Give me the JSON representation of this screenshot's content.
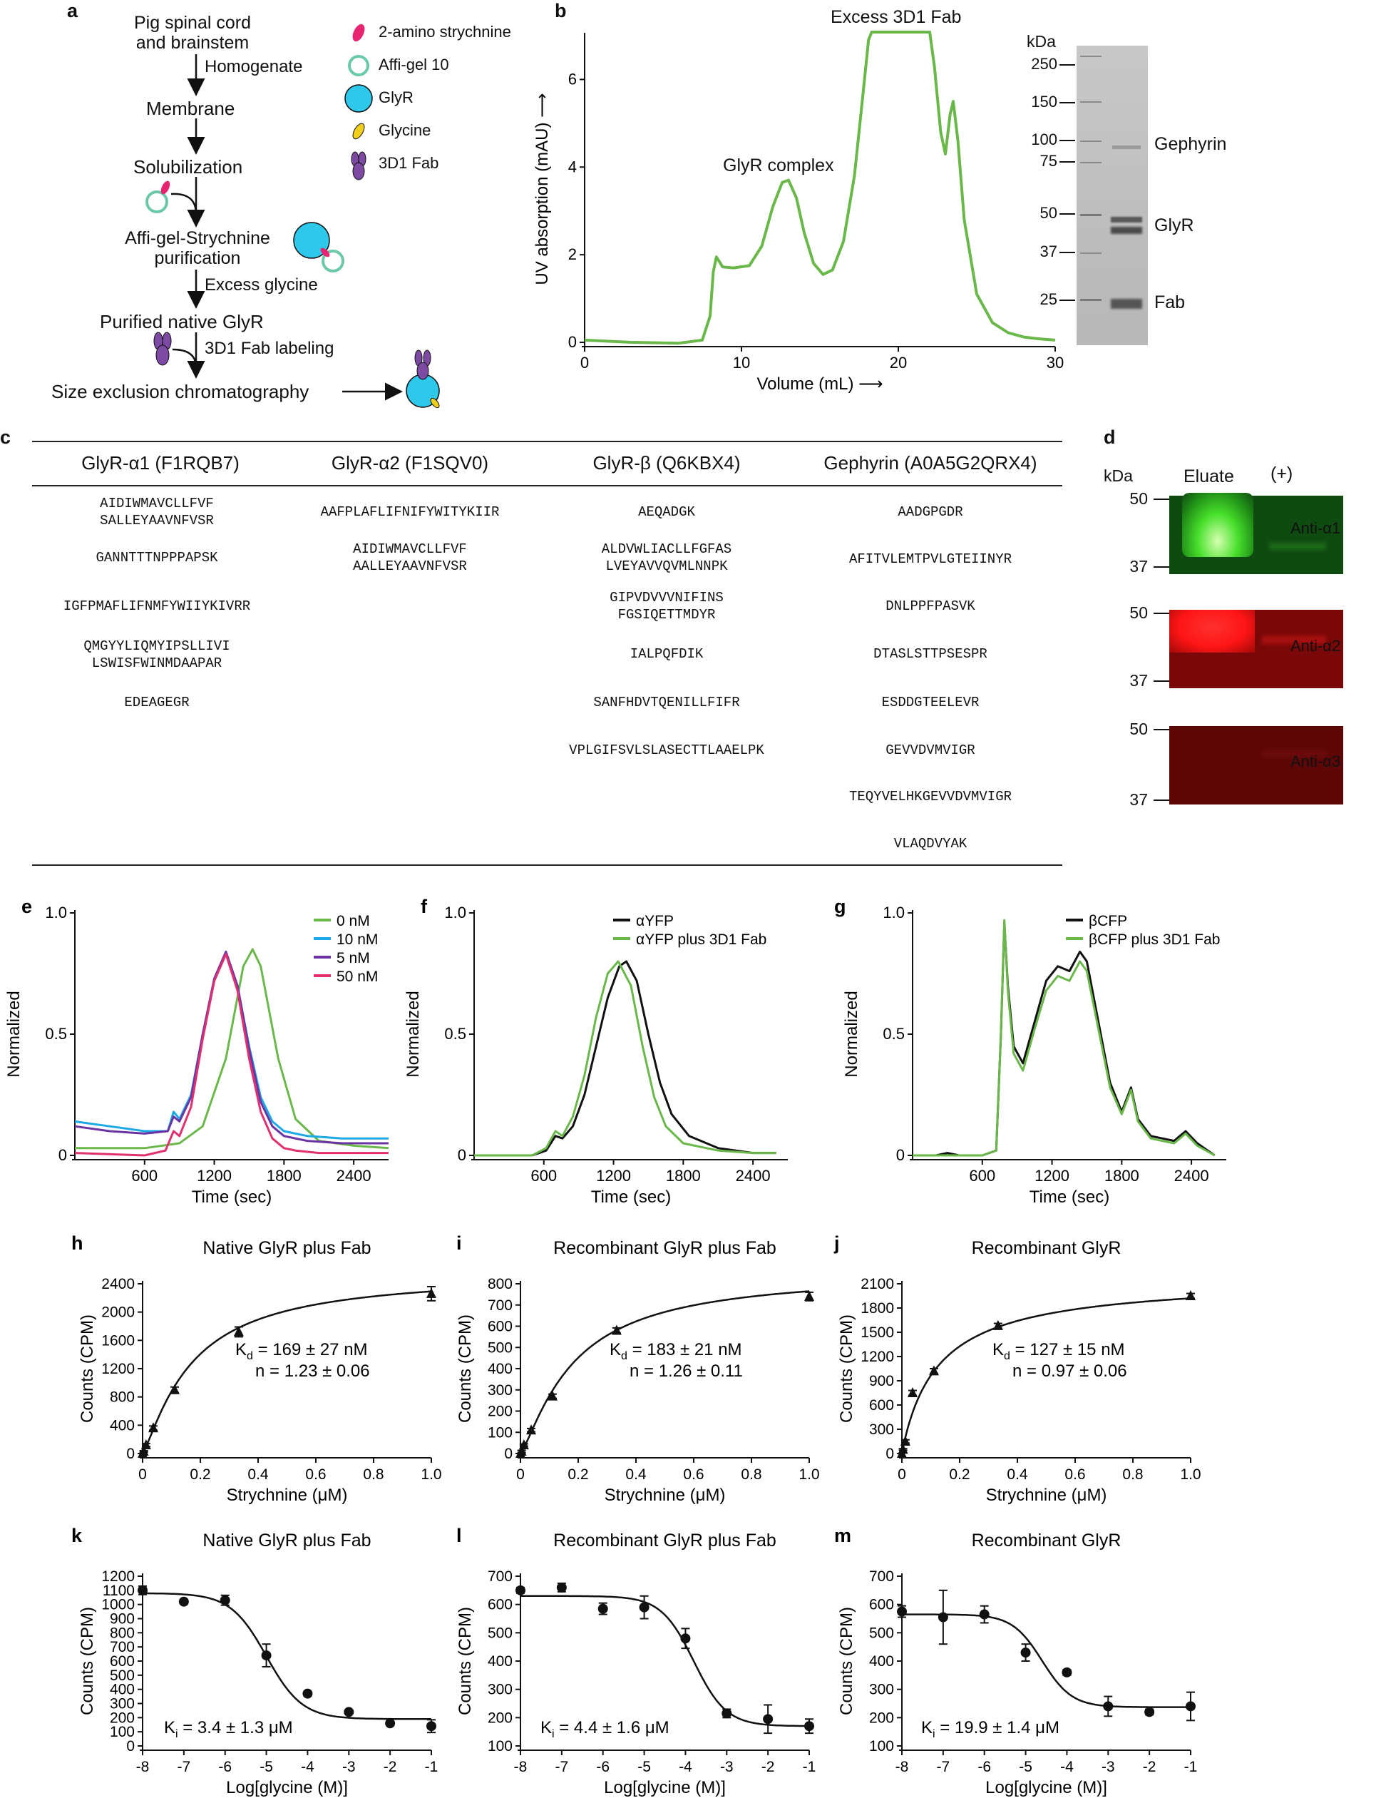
{
  "panel_a": {
    "label": "a",
    "steps": [
      "Pig spinal cord\nand brainstem",
      "Homogenate",
      "Membrane",
      "Solubilization",
      "Affi-gel-Strychnine\npurification",
      "Excess glycine",
      "Purified native GlyR",
      "3D1 Fab labeling",
      "Size exclusion chromatography"
    ],
    "legend": [
      "2-amino strychnine",
      "Affi-gel 10",
      "GlyR",
      "Glycine",
      "3D1 Fab"
    ],
    "colors": {
      "strychnine": "#e8236f",
      "affigel": "#6cc9a8",
      "glyr": "#2ec8ea",
      "glycine": "#f2cf1d",
      "fab": "#7d4aa3"
    }
  },
  "panel_b": {
    "label": "b",
    "kda_label": "kDa",
    "markers": [
      "250",
      "150",
      "100",
      "75",
      "50",
      "37",
      "25"
    ],
    "band_labels": [
      "Gephyrin",
      "GlyR",
      "Fab"
    ],
    "annotations": [
      "Excess 3D1 Fab",
      "GlyR complex"
    ]
  },
  "panel_c": {
    "label": "c",
    "columns": [
      {
        "header": "GlyR-α1 (F1RQB7)",
        "peptides": [
          "AIDIWMAVCLLFVF\nSALLEYAAVNFVSR",
          "GANNTTTNPPPAPSK",
          "IGFPMAFLIFNMFYWIIYKIVRR",
          "QMGYYLIQMYIPSLLIVI\nLSWISFWINMDAAPAR",
          "EDEAGEGR"
        ]
      },
      {
        "header": "GlyR-α2 (F1SQV0)",
        "peptides": [
          "AAFPLAFLIFNIFYWITYKIIR",
          "AIDIWMAVCLLFVF\nAALLEYAAVNFVSR"
        ]
      },
      {
        "header": "GlyR-β (Q6KBX4)",
        "peptides": [
          "AEQADGK",
          "ALDVWLIACLLFGFAS\nLVEYAVVQVMLNNPK",
          "GIPVDVVVNIFINS\nFGSIQETTMDYR",
          "IALPQFDIK",
          "SANFHDVTQENILLFIFR",
          "VPLGIFSVLSLASECTTLAAELPK"
        ]
      },
      {
        "header": "Gephyrin (A0A5G2QRX4)",
        "peptides": [
          "AADGPGDR",
          "AFITVLEMTPVLGTEIINYR",
          "DNLPPFPASVK",
          "DTASLSTTPSESPR",
          "ESDDGTEELEVR",
          "GEVVDVMVIGR",
          "TEQYVELHKGEVVDVMVIGR",
          "VLAQDVYAK"
        ]
      }
    ]
  },
  "panel_d": {
    "label": "d",
    "kda_label": "kDa",
    "lane_labels": [
      "Eluate",
      "(+)"
    ],
    "markers": [
      "50",
      "37"
    ],
    "antibodies": [
      "Anti-α1",
      "Anti-α2",
      "Anti-α3"
    ]
  },
  "chart_data": [
    {
      "id": "b",
      "type": "line",
      "label": "b",
      "title": "",
      "xlabel": "Volume (mL) ⟶",
      "ylabel": "UV absorption (mAU) ⟶",
      "xlim": [
        0,
        30
      ],
      "ylim": [
        0,
        7
      ],
      "xticks": [
        "0",
        "10",
        "20",
        "30"
      ],
      "yticks": [
        "0",
        "2",
        "4",
        "6"
      ],
      "series": [
        {
          "name": "UV",
          "color": "#6ab74a",
          "x": [
            0,
            3,
            6,
            7.5,
            8,
            8.2,
            8.4,
            8.8,
            9.5,
            10.5,
            11.3,
            12,
            12.6,
            13,
            13.5,
            14,
            14.6,
            15.2,
            15.8,
            16.5,
            17.2,
            17.7,
            18.1,
            18.3,
            22.0,
            22.3,
            22.7,
            23.0,
            23.3,
            23.5,
            23.8,
            24.2,
            25,
            26,
            27,
            28,
            29,
            30
          ],
          "y": [
            0.05,
            0.0,
            -0.02,
            0.05,
            0.6,
            1.6,
            1.95,
            1.72,
            1.7,
            1.75,
            2.2,
            3.1,
            3.65,
            3.7,
            3.3,
            2.5,
            1.8,
            1.55,
            1.65,
            2.3,
            3.8,
            5.5,
            6.9,
            7.2,
            7.2,
            6.3,
            4.8,
            4.3,
            5.2,
            5.5,
            4.6,
            2.8,
            1.1,
            0.45,
            0.22,
            0.12,
            0.08,
            0.05
          ]
        }
      ]
    },
    {
      "id": "e",
      "type": "line",
      "label": "e",
      "xlabel": "Time (sec)",
      "ylabel": "Normalized",
      "xlim": [
        0,
        2700
      ],
      "ylim": [
        0,
        1.0
      ],
      "xticks": [
        "600",
        "1200",
        "1800",
        "2400"
      ],
      "yticks": [
        "0",
        "0.5",
        "1.0"
      ],
      "series": [
        {
          "name": "0 nM",
          "color": "#6ab74a",
          "x": [
            0,
            600,
            900,
            1100,
            1300,
            1450,
            1530,
            1600,
            1750,
            1900,
            2100,
            2400,
            2700
          ],
          "y": [
            0.03,
            0.03,
            0.05,
            0.12,
            0.4,
            0.78,
            0.85,
            0.78,
            0.4,
            0.15,
            0.06,
            0.04,
            0.03
          ]
        },
        {
          "name": "10 nM",
          "color": "#1ca9e6",
          "x": [
            0,
            300,
            600,
            800,
            850,
            900,
            1000,
            1100,
            1200,
            1300,
            1400,
            1500,
            1600,
            1700,
            1800,
            2000,
            2300,
            2700
          ],
          "y": [
            0.14,
            0.12,
            0.1,
            0.1,
            0.18,
            0.15,
            0.25,
            0.5,
            0.72,
            0.83,
            0.7,
            0.45,
            0.24,
            0.14,
            0.1,
            0.08,
            0.07,
            0.07
          ]
        },
        {
          "name": "5 nM",
          "color": "#6a35a3",
          "x": [
            0,
            300,
            600,
            800,
            850,
            900,
            1000,
            1100,
            1200,
            1300,
            1400,
            1500,
            1600,
            1700,
            1800,
            2000,
            2300,
            2700
          ],
          "y": [
            0.12,
            0.1,
            0.09,
            0.1,
            0.16,
            0.14,
            0.24,
            0.5,
            0.73,
            0.84,
            0.7,
            0.44,
            0.22,
            0.12,
            0.08,
            0.06,
            0.05,
            0.05
          ]
        },
        {
          "name": "50 nM",
          "color": "#e0306f",
          "x": [
            0,
            600,
            780,
            850,
            900,
            1000,
            1100,
            1200,
            1300,
            1400,
            1500,
            1600,
            1700,
            1800,
            1900,
            2100,
            2400,
            2700
          ],
          "y": [
            0.01,
            0.0,
            0.02,
            0.1,
            0.08,
            0.2,
            0.48,
            0.72,
            0.83,
            0.68,
            0.4,
            0.18,
            0.07,
            0.03,
            0.02,
            0.01,
            0.01,
            0.01
          ]
        }
      ]
    },
    {
      "id": "f",
      "type": "line",
      "label": "f",
      "xlabel": "Time (sec)",
      "ylabel": "Normalized",
      "xlim": [
        0,
        2700
      ],
      "ylim": [
        0,
        1.0
      ],
      "xticks": [
        "600",
        "1200",
        "1800",
        "2400"
      ],
      "yticks": [
        "0",
        "0.5",
        "1.0"
      ],
      "series": [
        {
          "name": "αYFP",
          "color": "#111111",
          "x": [
            0,
            500,
            620,
            700,
            760,
            850,
            950,
            1050,
            1150,
            1250,
            1310,
            1400,
            1500,
            1600,
            1700,
            1850,
            2100,
            2400,
            2600
          ],
          "y": [
            0.0,
            0.0,
            0.02,
            0.08,
            0.07,
            0.12,
            0.25,
            0.45,
            0.65,
            0.78,
            0.8,
            0.72,
            0.5,
            0.3,
            0.17,
            0.08,
            0.03,
            0.01,
            0.01
          ]
        },
        {
          "name": "αYFP plus 3D1 Fab",
          "color": "#6ab74a",
          "x": [
            0,
            500,
            620,
            700,
            760,
            850,
            950,
            1050,
            1150,
            1240,
            1350,
            1450,
            1550,
            1650,
            1800,
            2100,
            2400,
            2600
          ],
          "y": [
            0.0,
            0.0,
            0.03,
            0.1,
            0.08,
            0.16,
            0.33,
            0.57,
            0.75,
            0.8,
            0.7,
            0.45,
            0.24,
            0.12,
            0.05,
            0.02,
            0.01,
            0.01
          ]
        }
      ]
    },
    {
      "id": "g",
      "type": "line",
      "label": "g",
      "xlabel": "Time (sec)",
      "ylabel": "Normalized",
      "xlim": [
        0,
        2700
      ],
      "ylim": [
        0,
        1.0
      ],
      "xticks": [
        "600",
        "1200",
        "1800",
        "2400"
      ],
      "yticks": [
        "0",
        "0.5",
        "1.0"
      ],
      "series": [
        {
          "name": "βCFP",
          "color": "#111111",
          "x": [
            0,
            200,
            300,
            400,
            600,
            720,
            760,
            790,
            820,
            870,
            950,
            1050,
            1150,
            1250,
            1350,
            1440,
            1500,
            1600,
            1700,
            1800,
            1880,
            1940,
            2050,
            2150,
            2250,
            2350,
            2450,
            2600
          ],
          "y": [
            0.0,
            0.0,
            0.01,
            0.0,
            0.0,
            0.02,
            0.5,
            0.96,
            0.7,
            0.45,
            0.38,
            0.55,
            0.72,
            0.78,
            0.76,
            0.84,
            0.8,
            0.55,
            0.3,
            0.18,
            0.28,
            0.15,
            0.08,
            0.07,
            0.06,
            0.1,
            0.05,
            0.0
          ]
        },
        {
          "name": "βCFP plus 3D1 Fab",
          "color": "#6ab74a",
          "x": [
            0,
            600,
            720,
            760,
            790,
            820,
            870,
            950,
            1050,
            1150,
            1250,
            1350,
            1440,
            1500,
            1600,
            1700,
            1800,
            1880,
            1940,
            2050,
            2150,
            2250,
            2350,
            2450,
            2600
          ],
          "y": [
            0.0,
            0.0,
            0.02,
            0.5,
            0.97,
            0.68,
            0.42,
            0.35,
            0.52,
            0.68,
            0.74,
            0.72,
            0.8,
            0.76,
            0.52,
            0.28,
            0.17,
            0.27,
            0.14,
            0.07,
            0.06,
            0.05,
            0.09,
            0.04,
            0.0
          ]
        }
      ]
    },
    {
      "id": "h",
      "type": "scatter",
      "label": "h",
      "title": "Native GlyR plus Fab",
      "xlabel": "Strychnine (μM)",
      "ylabel": "Counts (CPM)",
      "xlim": [
        0,
        1.0
      ],
      "ylim": [
        0,
        2400
      ],
      "xticks": [
        "0",
        "0.2",
        "0.4",
        "0.6",
        "0.8",
        "1.0"
      ],
      "yticks": [
        "0",
        "400",
        "800",
        "1200",
        "1600",
        "2000",
        "2400"
      ],
      "kd_value": "= 169 ± 27 nM",
      "n_text": "n = 1.23 ± 0.06",
      "fit": {
        "bmax": 2550,
        "kd": 0.169,
        "n": 1.23
      },
      "points": {
        "x": [
          0,
          0.004,
          0.012,
          0.037,
          0.111,
          0.333,
          1.0
        ],
        "y": [
          0,
          30,
          120,
          360,
          900,
          1720,
          2260
        ],
        "err": [
          0,
          10,
          20,
          30,
          40,
          70,
          100
        ]
      }
    },
    {
      "id": "i",
      "type": "scatter",
      "label": "i",
      "title": "Recombinant GlyR plus Fab",
      "xlabel": "Strychnine (μM)",
      "ylabel": "Counts (CPM)",
      "xlim": [
        0,
        1.0
      ],
      "ylim": [
        0,
        800
      ],
      "xticks": [
        "0",
        "0.2",
        "0.4",
        "0.6",
        "0.8",
        "1.0"
      ],
      "yticks": [
        "0",
        "100",
        "200",
        "300",
        "400",
        "500",
        "600",
        "700",
        "800"
      ],
      "kd_value": "= 183 ± 21 nM",
      "n_text": "n = 1.26 ± 0.11",
      "fit": {
        "bmax": 855,
        "kd": 0.183,
        "n": 1.26
      },
      "points": {
        "x": [
          0,
          0.004,
          0.012,
          0.037,
          0.111,
          0.333,
          1.0
        ],
        "y": [
          0,
          10,
          40,
          110,
          270,
          580,
          740
        ],
        "err": [
          0,
          5,
          5,
          8,
          10,
          12,
          20
        ]
      }
    },
    {
      "id": "j",
      "type": "scatter",
      "label": "j",
      "title": "Recombinant GlyR",
      "xlabel": "Strychnine (μM)",
      "ylabel": "Counts (CPM)",
      "xlim": [
        0,
        1.0
      ],
      "ylim": [
        0,
        2100
      ],
      "xticks": [
        "0",
        "0.2",
        "0.4",
        "0.6",
        "0.8",
        "1.0"
      ],
      "yticks": [
        "0",
        "300",
        "600",
        "900",
        "1200",
        "1500",
        "1800",
        "2100"
      ],
      "kd_value": "= 127 ± 15 nM",
      "n_text": "n = 0.97 ± 0.06",
      "fit": {
        "bmax": 2180,
        "kd": 0.127,
        "n": 0.97
      },
      "points": {
        "x": [
          0,
          0.004,
          0.012,
          0.037,
          0.111,
          0.333,
          1.0
        ],
        "y": [
          0,
          50,
          150,
          750,
          1020,
          1580,
          1950
        ],
        "err": [
          0,
          10,
          20,
          30,
          30,
          30,
          30
        ]
      }
    },
    {
      "id": "k",
      "type": "scatter",
      "label": "k",
      "title": "Native GlyR plus Fab",
      "xlabel": "Log[glycine (M)]",
      "ylabel": "Counts (CPM)",
      "xlim": [
        -8,
        -1
      ],
      "ylim": [
        0,
        1200
      ],
      "xticks": [
        "-8",
        "-7",
        "-6",
        "-5",
        "-4",
        "-3",
        "-2",
        "-1"
      ],
      "yticks": [
        "0",
        "100",
        "200",
        "300",
        "400",
        "500",
        "600",
        "700",
        "800",
        "900",
        "1000",
        "1100",
        "1200"
      ],
      "ki_value": "= 3.4 ± 1.3 μM",
      "fit": {
        "top": 1080,
        "bottom": 190,
        "logic50": -5.0,
        "hill": 1.0
      },
      "points": {
        "x": [
          -8,
          -7,
          -6,
          -5,
          -4,
          -3,
          -2,
          -1
        ],
        "y": [
          1100,
          1020,
          1030,
          640,
          370,
          240,
          160,
          140
        ],
        "err": [
          30,
          15,
          35,
          80,
          15,
          15,
          15,
          45
        ]
      }
    },
    {
      "id": "l",
      "type": "scatter",
      "label": "l",
      "title": "Recombinant GlyR plus Fab",
      "xlabel": "Log[glycine (M)]",
      "ylabel": "Counts (CPM)",
      "xlim": [
        -8,
        -1
      ],
      "ylim": [
        100,
        700
      ],
      "xticks": [
        "-8",
        "-7",
        "-6",
        "-5",
        "-4",
        "-3",
        "-2",
        "-1"
      ],
      "yticks": [
        "100",
        "200",
        "300",
        "400",
        "500",
        "600",
        "700"
      ],
      "ki_value": "= 4.4 ± 1.6 μM",
      "fit": {
        "top": 630,
        "bottom": 170,
        "logic50": -3.8,
        "hill": 1.1
      },
      "points": {
        "x": [
          -8,
          -7,
          -6,
          -5,
          -4,
          -3,
          -2,
          -1
        ],
        "y": [
          650,
          660,
          585,
          590,
          480,
          215,
          195,
          170
        ],
        "err": [
          10,
          15,
          20,
          40,
          35,
          15,
          50,
          25
        ]
      }
    },
    {
      "id": "m",
      "type": "scatter",
      "label": "m",
      "title": "Recombinant GlyR",
      "xlabel": "Log[glycine (M)]",
      "ylabel": "Counts (CPM)",
      "xlim": [
        -8,
        -1
      ],
      "ylim": [
        100,
        700
      ],
      "xticks": [
        "-8",
        "-7",
        "-6",
        "-5",
        "-4",
        "-3",
        "-2",
        "-1"
      ],
      "yticks": [
        "100",
        "200",
        "300",
        "400",
        "500",
        "600",
        "700"
      ],
      "ki_value": "= 19.9 ± 1.4 μM",
      "fit": {
        "top": 565,
        "bottom": 237,
        "logic50": -4.6,
        "hill": 1.2
      },
      "points": {
        "x": [
          -8,
          -7,
          -6,
          -5,
          -4,
          -3,
          -2,
          -1
        ],
        "y": [
          575,
          555,
          565,
          430,
          360,
          240,
          220,
          240
        ],
        "err": [
          20,
          95,
          30,
          30,
          10,
          35,
          10,
          50
        ]
      }
    }
  ]
}
